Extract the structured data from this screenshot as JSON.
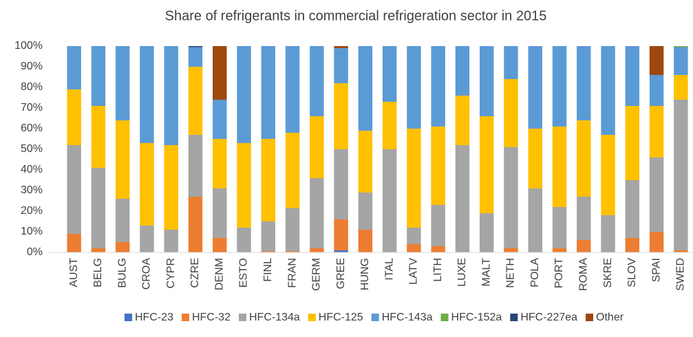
{
  "chart_data": {
    "type": "stacked_bar",
    "title": "Share of refrigerants in commercial refrigeration sector in 2015",
    "categories": [
      "AUST",
      "BELG",
      "BULG",
      "CROA",
      "CYPR",
      "CZRE",
      "DENM",
      "ESTO",
      "FINL",
      "FRAN",
      "GERM",
      "GREE",
      "HUNG",
      "ITAL",
      "LATV",
      "LITH",
      "LUXE",
      "MALT",
      "NETH",
      "POLA",
      "PORT",
      "ROMA",
      "SKRE",
      "SLOV",
      "SPAI",
      "SWED"
    ],
    "series": [
      {
        "name": "HFC-23",
        "color": "#4472c4",
        "values": [
          0,
          0,
          0,
          0,
          0,
          0,
          0,
          0,
          0,
          0,
          0,
          1,
          0,
          0,
          0,
          0,
          0,
          0,
          0,
          0,
          0,
          0,
          0,
          0,
          0,
          0
        ]
      },
      {
        "name": "HFC-32",
        "color": "#ed7d31",
        "values": [
          9,
          2,
          5,
          0,
          0,
          27,
          7,
          0,
          0.5,
          0.5,
          2,
          15,
          11,
          0,
          4,
          3,
          0,
          0,
          2,
          0,
          2,
          6,
          0,
          7,
          10,
          1
        ]
      },
      {
        "name": "HFC-134a",
        "color": "#a5a5a5",
        "values": [
          43,
          39,
          21,
          13,
          11,
          30,
          24,
          12,
          14.5,
          21,
          34,
          34,
          18,
          50,
          8,
          20,
          52,
          19,
          49,
          31,
          20,
          21,
          18,
          28,
          36,
          73
        ]
      },
      {
        "name": "HFC-125",
        "color": "#ffc000",
        "values": [
          27,
          30,
          38,
          40,
          41,
          33,
          24,
          41,
          40,
          36.5,
          30,
          32,
          30,
          23,
          48,
          38,
          24,
          47,
          33,
          29,
          39,
          37,
          39,
          36,
          25,
          12
        ]
      },
      {
        "name": "HFC-143a",
        "color": "#5b9bd5",
        "values": [
          21,
          29,
          36,
          47,
          48,
          9.5,
          19,
          47,
          45,
          42,
          34,
          17,
          41,
          27,
          40,
          39,
          24,
          34,
          16,
          40,
          39,
          36,
          43,
          29,
          15,
          13.5
        ]
      },
      {
        "name": "HFC-152a",
        "color": "#70ad47",
        "values": [
          0,
          0,
          0,
          0,
          0,
          0,
          0,
          0,
          0,
          0,
          0,
          0,
          0,
          0,
          0,
          0,
          0,
          0,
          0,
          0,
          0,
          0,
          0,
          0,
          0,
          0.5
        ]
      },
      {
        "name": "HFC-227ea",
        "color": "#264478",
        "values": [
          0,
          0,
          0,
          0,
          0,
          0.5,
          0,
          0,
          0,
          0,
          0,
          0,
          0,
          0,
          0,
          0,
          0,
          0,
          0,
          0,
          0,
          0,
          0,
          0,
          0,
          0
        ]
      },
      {
        "name": "Other",
        "color": "#9e480e",
        "values": [
          0,
          0,
          0,
          0,
          0,
          0,
          26,
          0,
          0,
          0,
          0,
          1,
          0,
          0,
          0,
          0,
          0,
          0,
          0,
          0,
          0,
          0,
          0,
          0,
          14,
          0
        ]
      }
    ],
    "ylim": [
      0,
      100
    ],
    "yticks": [
      {
        "value": 0,
        "label": "0%"
      },
      {
        "value": 10,
        "label": "10%"
      },
      {
        "value": 20,
        "label": "20%"
      },
      {
        "value": 30,
        "label": "30%"
      },
      {
        "value": 40,
        "label": "40%"
      },
      {
        "value": 50,
        "label": "50%"
      },
      {
        "value": 60,
        "label": "60%"
      },
      {
        "value": 70,
        "label": "70%"
      },
      {
        "value": 80,
        "label": "80%"
      },
      {
        "value": 90,
        "label": "90%"
      },
      {
        "value": 100,
        "label": "100%"
      }
    ],
    "grid": false,
    "legend": "bottom"
  }
}
